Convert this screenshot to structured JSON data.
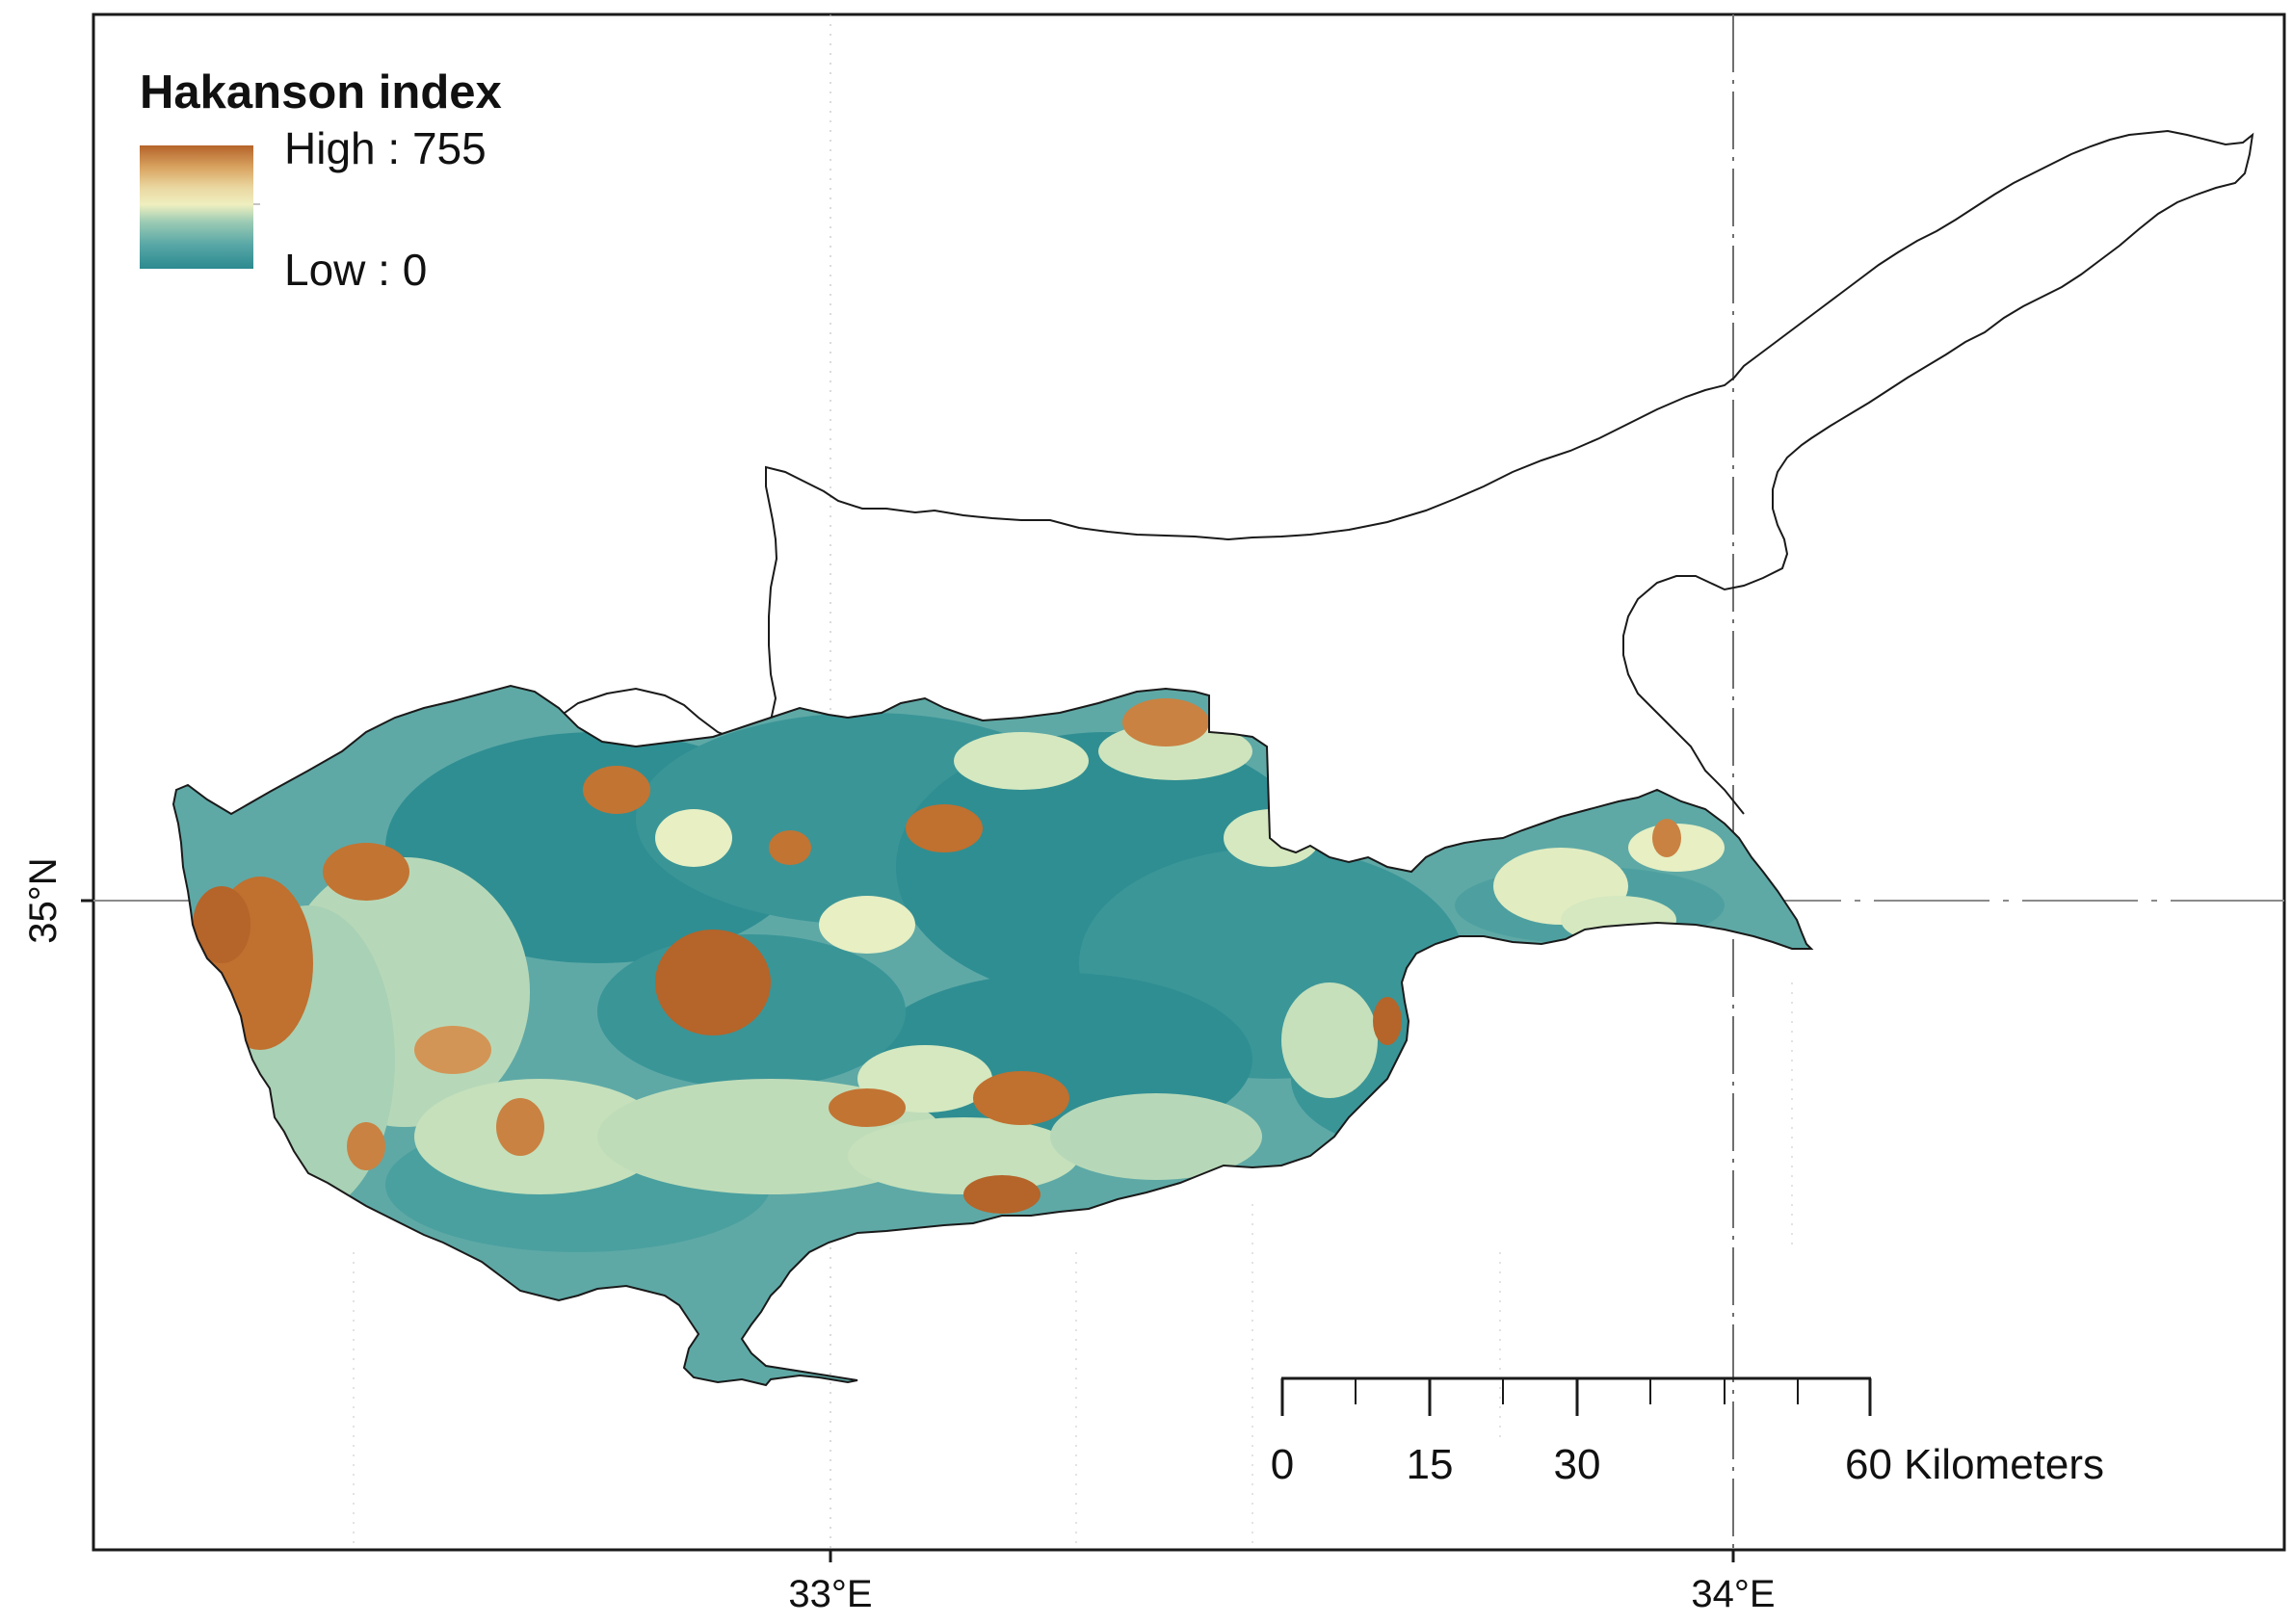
{
  "legend": {
    "title": "Hakanson index",
    "high_label": "High : 755",
    "low_label": "Low : 0",
    "high_value": 755,
    "low_value": 0,
    "ramp_colors": [
      "#2b8a8f",
      "#5aa8a7",
      "#9ccbb4",
      "#efefc0",
      "#ead7a0",
      "#d9a461",
      "#b5642a"
    ]
  },
  "axes": {
    "x_ticks": [
      {
        "label": "33°E",
        "value": 33
      },
      {
        "label": "34°E",
        "value": 34
      }
    ],
    "y_ticks": [
      {
        "label": "35°N",
        "value": 35
      }
    ]
  },
  "scale_bar": {
    "tick_labels": [
      "0",
      "15",
      "30",
      "60 Kilometers"
    ],
    "tick_values": [
      0,
      15,
      30,
      60
    ],
    "max_km": 60
  },
  "colors": {
    "frame": "#1a1a1a",
    "coastline": "#1a1a1a",
    "graticule": "#b8b8b8",
    "low": "#2b8a8f",
    "mid": "#efefc0",
    "high": "#b5642a"
  }
}
